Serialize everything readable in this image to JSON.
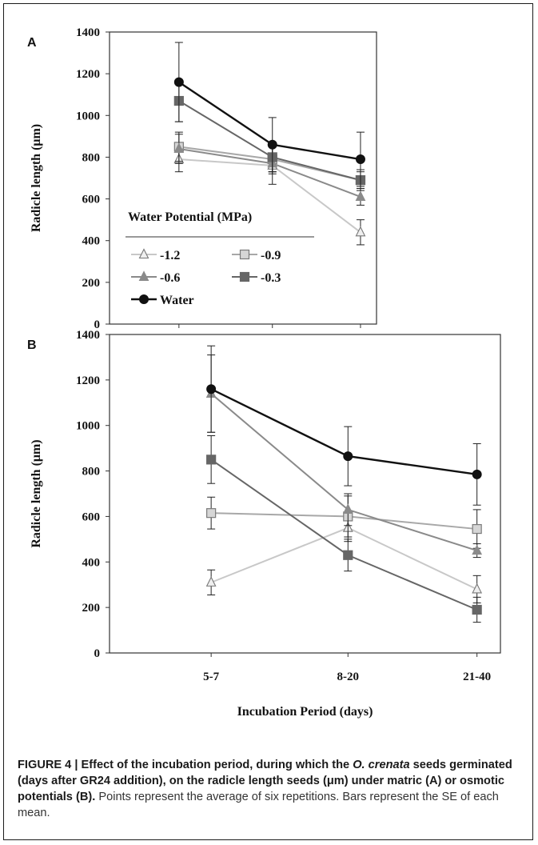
{
  "chart_data": [
    {
      "panel_label": "A",
      "type": "line",
      "x_categories": [
        "5-7",
        "8-20",
        "21-40"
      ],
      "ylabel": "Radicle length (μm)",
      "xlabel": "",
      "ylim": [
        0,
        1400
      ],
      "yticks": [
        "0",
        "200",
        "400",
        "600",
        "800",
        "1000",
        "1200",
        "1400"
      ],
      "x_tick_labels_shown": false,
      "legend": {
        "title": "Water Potential (MPa)",
        "placement": "lower-left",
        "entries": [
          "-1.2",
          "-0.9",
          "-0.6",
          "-0.3",
          "Water"
        ]
      },
      "series": [
        {
          "name": "-1.2",
          "marker": "triangle-open",
          "color": "#c8c8c8",
          "values": [
            790,
            760,
            440
          ],
          "error": [
            60,
            90,
            60
          ]
        },
        {
          "name": "-0.9",
          "marker": "square-open",
          "color": "#a8a8a8",
          "values": [
            850,
            790,
            690
          ],
          "error": [
            70,
            60,
            40
          ]
        },
        {
          "name": "-0.6",
          "marker": "triangle",
          "color": "#8a8a8a",
          "values": [
            840,
            770,
            610
          ],
          "error": [
            70,
            50,
            40
          ]
        },
        {
          "name": "-0.3",
          "marker": "square",
          "color": "#666666",
          "values": [
            1070,
            800,
            690
          ],
          "error": [
            100,
            70,
            50
          ]
        },
        {
          "name": "Water",
          "marker": "circle",
          "color": "#111111",
          "values": [
            1160,
            860,
            790
          ],
          "error": [
            190,
            130,
            130
          ]
        }
      ]
    },
    {
      "panel_label": "B",
      "type": "line",
      "x_categories": [
        "5-7",
        "8-20",
        "21-40"
      ],
      "ylabel": "Radicle length (μm)",
      "xlabel": "Incubation Period (days)",
      "ylim": [
        0,
        1400
      ],
      "yticks": [
        "0",
        "200",
        "400",
        "600",
        "800",
        "1000",
        "1200",
        "1400"
      ],
      "series": [
        {
          "name": "-1.2",
          "marker": "triangle-open",
          "color": "#c8c8c8",
          "values": [
            310,
            550,
            280
          ],
          "error": [
            55,
            60,
            60
          ]
        },
        {
          "name": "-0.9",
          "marker": "square-open",
          "color": "#a8a8a8",
          "values": [
            615,
            600,
            545
          ],
          "error": [
            70,
            90,
            85
          ]
        },
        {
          "name": "-0.6",
          "marker": "triangle",
          "color": "#8a8a8a",
          "values": [
            1140,
            630,
            450
          ],
          "error": [
            170,
            70,
            30
          ]
        },
        {
          "name": "-0.3",
          "marker": "square",
          "color": "#666666",
          "values": [
            850,
            430,
            190
          ],
          "error": [
            105,
            70,
            55
          ]
        },
        {
          "name": "Water",
          "marker": "circle",
          "color": "#111111",
          "values": [
            1160,
            865,
            785
          ],
          "error": [
            190,
            130,
            135
          ]
        }
      ]
    }
  ],
  "caption": {
    "bold_prefix": "FIGURE 4 | Effect of the incubation period, during which the ",
    "bold_italic": "O. crenata",
    "bold_suffix": " seeds germinated (days after GR24 addition), on the radicle length seeds (μm) under matric (A) or osmotic potentials (B).",
    "rest": " Points represent the average of six repetitions. Bars represent the SE of each mean."
  }
}
